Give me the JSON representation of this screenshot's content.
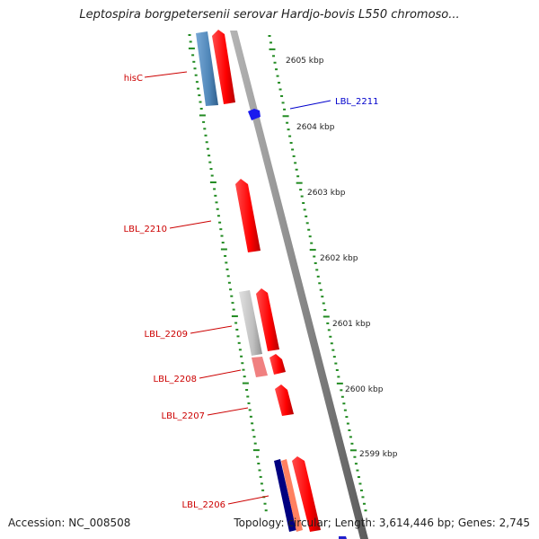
{
  "title": "Leptospira borgpetersenii serovar Hardjo-bovis L550 chromoso...",
  "footer": {
    "accession": "Accession: NC_008508",
    "stats": "Topology: circular; Length: 3,614,446 bp; Genes: 2,745"
  },
  "colors": {
    "gene_forward": "#ff0000",
    "gene_forward_light": "#f08080",
    "gene_reverse": "#4f86b8",
    "gene_grey": "#c0c0c0",
    "gene_blue": "#0000ee",
    "gene_navy": "#000080",
    "gene_salmon": "#ff8060",
    "label_red": "#cc0000",
    "label_blue": "#0000cc",
    "ticks": "#228b22",
    "backbone": "#888888"
  },
  "scale_labels": [
    "2605 kbp",
    "2604 kbp",
    "2603 kbp",
    "2602 kbp",
    "2601 kbp",
    "2600 kbp",
    "2599 kbp"
  ],
  "gene_labels": [
    "hisC",
    "LBL_2211",
    "LBL_2210",
    "LBL_2209",
    "LBL_2208",
    "LBL_2207",
    "LBL_2206"
  ]
}
